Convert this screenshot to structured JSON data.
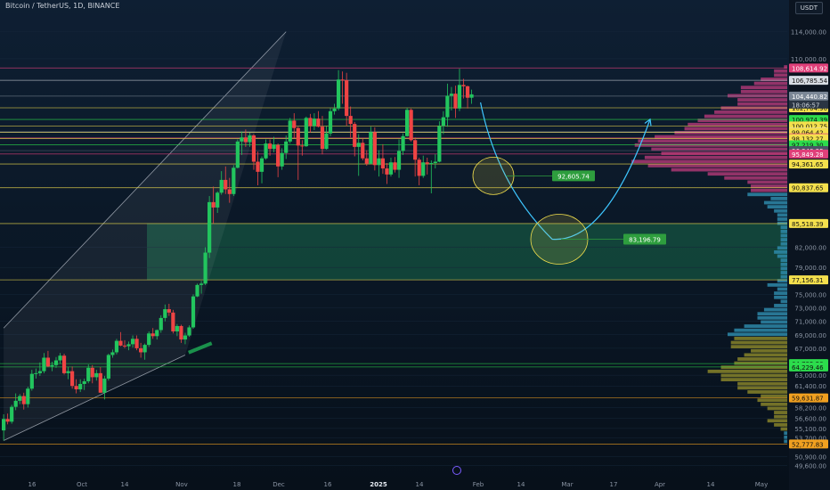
{
  "header": {
    "title": "Bitcoin / TetherUS, 1D, BINANCE",
    "currency": "USDT"
  },
  "chart_data": {
    "type": "candlestick",
    "symbol": "Bitcoin / TetherUS",
    "interval": "1D",
    "exchange": "BINANCE",
    "currency": "USDT",
    "ylim": [
      48600,
      115800
    ],
    "y_ticks": [
      114000,
      110000,
      82000,
      79000,
      75000,
      73000,
      71000,
      69000,
      67000,
      63000,
      61400,
      58200,
      56600,
      55100,
      53700,
      50900,
      49600
    ],
    "x_ticks": [
      "16",
      "Oct",
      "14",
      "Nov",
      "18",
      "Dec",
      "16",
      "2025",
      "14",
      "Feb",
      "14",
      "Mar",
      "17",
      "Apr",
      "14",
      "May"
    ],
    "candles": [
      [
        54800,
        57200,
        53300,
        56500
      ],
      [
        56500,
        57300,
        55700,
        56100
      ],
      [
        56100,
        58600,
        55800,
        58300
      ],
      [
        58300,
        60300,
        57800,
        59200
      ],
      [
        59200,
        60200,
        58700,
        59900
      ],
      [
        59900,
        60400,
        57900,
        58700
      ],
      [
        58700,
        61300,
        58200,
        61000
      ],
      [
        61000,
        63800,
        60700,
        63200
      ],
      [
        63200,
        64000,
        62500,
        63300
      ],
      [
        63300,
        64900,
        62900,
        63600
      ],
      [
        63600,
        66300,
        63300,
        65600
      ],
      [
        65600,
        66600,
        64200,
        64300
      ],
      [
        64300,
        65000,
        63600,
        64500
      ],
      [
        64500,
        65700,
        64100,
        65200
      ],
      [
        65200,
        66300,
        64700,
        65900
      ],
      [
        65900,
        66200,
        63100,
        63300
      ],
      [
        63300,
        64200,
        62400,
        63600
      ],
      [
        63600,
        64300,
        61000,
        61400
      ],
      [
        61400,
        62400,
        60300,
        60900
      ],
      [
        60900,
        62400,
        60500,
        61700
      ],
      [
        61700,
        62500,
        60800,
        62100
      ],
      [
        62100,
        64600,
        61800,
        64100
      ],
      [
        64100,
        64500,
        61800,
        62700
      ],
      [
        62700,
        63800,
        62200,
        63300
      ],
      [
        63300,
        64200,
        60400,
        60400
      ],
      [
        60400,
        62900,
        59400,
        62500
      ],
      [
        62500,
        66200,
        62200,
        66000
      ],
      [
        66000,
        66800,
        65600,
        66400
      ],
      [
        66400,
        68400,
        66100,
        68100
      ],
      [
        68100,
        69400,
        67300,
        67400
      ],
      [
        67400,
        68200,
        67000,
        67300
      ],
      [
        67300,
        68000,
        66700,
        67600
      ],
      [
        67600,
        68900,
        67100,
        68400
      ],
      [
        68400,
        68900,
        66700,
        67000
      ],
      [
        67000,
        67800,
        65600,
        66400
      ],
      [
        66400,
        67700,
        65300,
        67500
      ],
      [
        67500,
        69500,
        67200,
        69200
      ],
      [
        69200,
        70000,
        68400,
        68800
      ],
      [
        68800,
        69800,
        68300,
        69700
      ],
      [
        69700,
        71900,
        69300,
        71500
      ],
      [
        71500,
        73500,
        71000,
        72800
      ],
      [
        72800,
        73600,
        71800,
        72300
      ],
      [
        72300,
        72700,
        69200,
        69500
      ],
      [
        69500,
        70600,
        68800,
        70300
      ],
      [
        70300,
        70500,
        67800,
        68300
      ],
      [
        68300,
        69300,
        67600,
        68900
      ],
      [
        68900,
        70400,
        68700,
        70100
      ],
      [
        70100,
        75000,
        69900,
        74700
      ],
      [
        74700,
        76600,
        74600,
        76400
      ],
      [
        76400,
        77000,
        75100,
        76600
      ],
      [
        76600,
        82000,
        76400,
        81200
      ],
      [
        81200,
        89600,
        80400,
        88700
      ],
      [
        88700,
        91000,
        85500,
        87900
      ],
      [
        87900,
        90300,
        87100,
        90100
      ],
      [
        90100,
        93300,
        89800,
        92000
      ],
      [
        92000,
        94000,
        89900,
        90600
      ],
      [
        90600,
        92300,
        88600,
        89900
      ],
      [
        89900,
        94200,
        89600,
        93800
      ],
      [
        93800,
        98000,
        93700,
        97700
      ],
      [
        97700,
        99200,
        95700,
        98300
      ],
      [
        98300,
        99500,
        96900,
        97600
      ],
      [
        97600,
        99000,
        96900,
        98600
      ],
      [
        98600,
        98800,
        93500,
        94700
      ],
      [
        94700,
        96200,
        91200,
        93200
      ],
      [
        93200,
        95500,
        91500,
        95200
      ],
      [
        95200,
        98000,
        95000,
        97400
      ],
      [
        97400,
        98000,
        95600,
        96600
      ],
      [
        96600,
        98400,
        96100,
        97200
      ],
      [
        97200,
        97400,
        92400,
        94000
      ],
      [
        94000,
        96700,
        93500,
        96000
      ],
      [
        96000,
        98600,
        95100,
        97700
      ],
      [
        97700,
        101200,
        97400,
        100800
      ],
      [
        100800,
        101900,
        98200,
        99700
      ],
      [
        99700,
        99900,
        92000,
        97100
      ],
      [
        97100,
        97900,
        95600,
        97000
      ],
      [
        97000,
        101400,
        96900,
        101200
      ],
      [
        101200,
        101800,
        99000,
        100000
      ],
      [
        100000,
        101900,
        99400,
        101100
      ],
      [
        101100,
        102200,
        99800,
        99900
      ],
      [
        99900,
        101500,
        95800,
        96600
      ],
      [
        96600,
        100000,
        96500,
        98900
      ],
      [
        98900,
        102700,
        98500,
        102200
      ],
      [
        102200,
        103300,
        101700,
        102600
      ],
      [
        102600,
        108300,
        102300,
        106900
      ],
      [
        106900,
        108100,
        103300,
        106800
      ],
      [
        106800,
        107900,
        100000,
        101500
      ],
      [
        101500,
        102900,
        98300,
        100300
      ],
      [
        100300,
        100600,
        95500,
        96900
      ],
      [
        96900,
        98800,
        92600,
        97500
      ],
      [
        97500,
        98100,
        94900,
        95200
      ],
      [
        95200,
        96400,
        94100,
        94400
      ],
      [
        94400,
        99900,
        94400,
        99100
      ],
      [
        99100,
        99800,
        93400,
        94200
      ],
      [
        94200,
        96400,
        92500,
        95200
      ],
      [
        95200,
        97300,
        92900,
        93700
      ],
      [
        93700,
        94500,
        91400,
        92800
      ],
      [
        92800,
        95300,
        92500,
        94600
      ],
      [
        94600,
        95400,
        93100,
        93500
      ],
      [
        93500,
        98000,
        92300,
        96300
      ],
      [
        96300,
        98900,
        95700,
        98500
      ],
      [
        98500,
        102700,
        98400,
        102400
      ],
      [
        102400,
        102600,
        97700,
        97900
      ],
      [
        97900,
        98300,
        92500,
        95000
      ],
      [
        95000,
        95300,
        91200,
        92600
      ],
      [
        92600,
        95600,
        92300,
        94600
      ],
      [
        94600,
        95300,
        92800,
        94400
      ],
      [
        94400,
        94900,
        90000,
        94500
      ],
      [
        94500,
        95800,
        93700,
        94700
      ],
      [
        94700,
        100700,
        94600,
        100000
      ],
      [
        100000,
        102200,
        98800,
        101300
      ],
      [
        101300,
        106300,
        99900,
        104500
      ],
      [
        104500,
        105800,
        102300,
        104800
      ],
      [
        104800,
        106000,
        101200,
        102600
      ],
      [
        102600,
        108500,
        102200,
        106100
      ],
      [
        106100,
        107000,
        104100,
        105900
      ],
      [
        105900,
        106000,
        102600,
        104200
      ],
      [
        104200,
        105400,
        103300,
        104700
      ]
    ],
    "channel": {
      "lower_start": [
        53300,
        0
      ],
      "lower_end": [
        66000,
        45
      ],
      "upper_start": [
        70000,
        0
      ],
      "upper_end": [
        114000,
        70
      ]
    },
    "horizontal_lines": [
      {
        "price": 108614.92,
        "label": "108,614.92",
        "color": "#e0407a"
      },
      {
        "price": 106785.54,
        "label": "106,785.54",
        "color": "#d7dce3"
      },
      {
        "price": 104440.82,
        "label": "104,440.82",
        "color": "#7b8796"
      },
      {
        "price": 102704.9,
        "label": "102,704.90",
        "color": "#f4e04d"
      },
      {
        "price": 100974.39,
        "label": "100,974.39",
        "color": "#2cdc4c"
      },
      {
        "price": 100012.75,
        "label": "100,012.75",
        "color": "#f4e04d"
      },
      {
        "price": 99110.39,
        "label": "99,110.39",
        "color": "#d7dce3"
      },
      {
        "price": 99064.42,
        "label": "99,064.42",
        "color": "#f4e04d"
      },
      {
        "price": 98231.89,
        "label": "98,231.89",
        "color": "#e0407a"
      },
      {
        "price": 98132.27,
        "label": "98,132.27",
        "color": "#f4e04d"
      },
      {
        "price": 97219.3,
        "label": "97,219.30",
        "color": "#2cdc4c"
      },
      {
        "price": 96348.25,
        "label": "96,348.25",
        "color": "#4a5566"
      },
      {
        "price": 95849.28,
        "label": "95,849.28",
        "color": "#e0407a"
      },
      {
        "price": 94361.65,
        "label": "94,361.65",
        "color": "#f4e04d"
      },
      {
        "price": 90837.65,
        "label": "90,837.65",
        "color": "#f4e04d"
      },
      {
        "price": 85518.39,
        "label": "85,518.39",
        "color": "#f4e04d"
      },
      {
        "price": 77156.31,
        "label": "77,156.31",
        "color": "#f4e04d"
      },
      {
        "price": 64725.5,
        "label": "64,725.50",
        "color": "#2cdc4c"
      },
      {
        "price": 64229.46,
        "label": "64,229.46",
        "color": "#2cdc4c"
      },
      {
        "price": 59631.87,
        "label": "59,631.87",
        "color": "#f0a020"
      },
      {
        "price": 52777.83,
        "label": "52,777.83",
        "color": "#f0a020"
      }
    ],
    "timer_label": "18:06:57",
    "zone": {
      "from": 77156.31,
      "to": 85518.39,
      "color": "#1b7a52"
    },
    "projection_targets": [
      {
        "price": 92605.74,
        "label": "92,605.74",
        "color": "#2e9e3e"
      },
      {
        "price": 83196.79,
        "label": "83,196.79",
        "color": "#2e9e3e"
      }
    ],
    "volume_profile_note": "horizontal volume-by-price histogram at right edge",
    "colors": {
      "up": "#22c55e",
      "down": "#ef4444",
      "background": "#0b1420",
      "channel": "#ffffff",
      "curve": "#3ec6ff"
    }
  }
}
